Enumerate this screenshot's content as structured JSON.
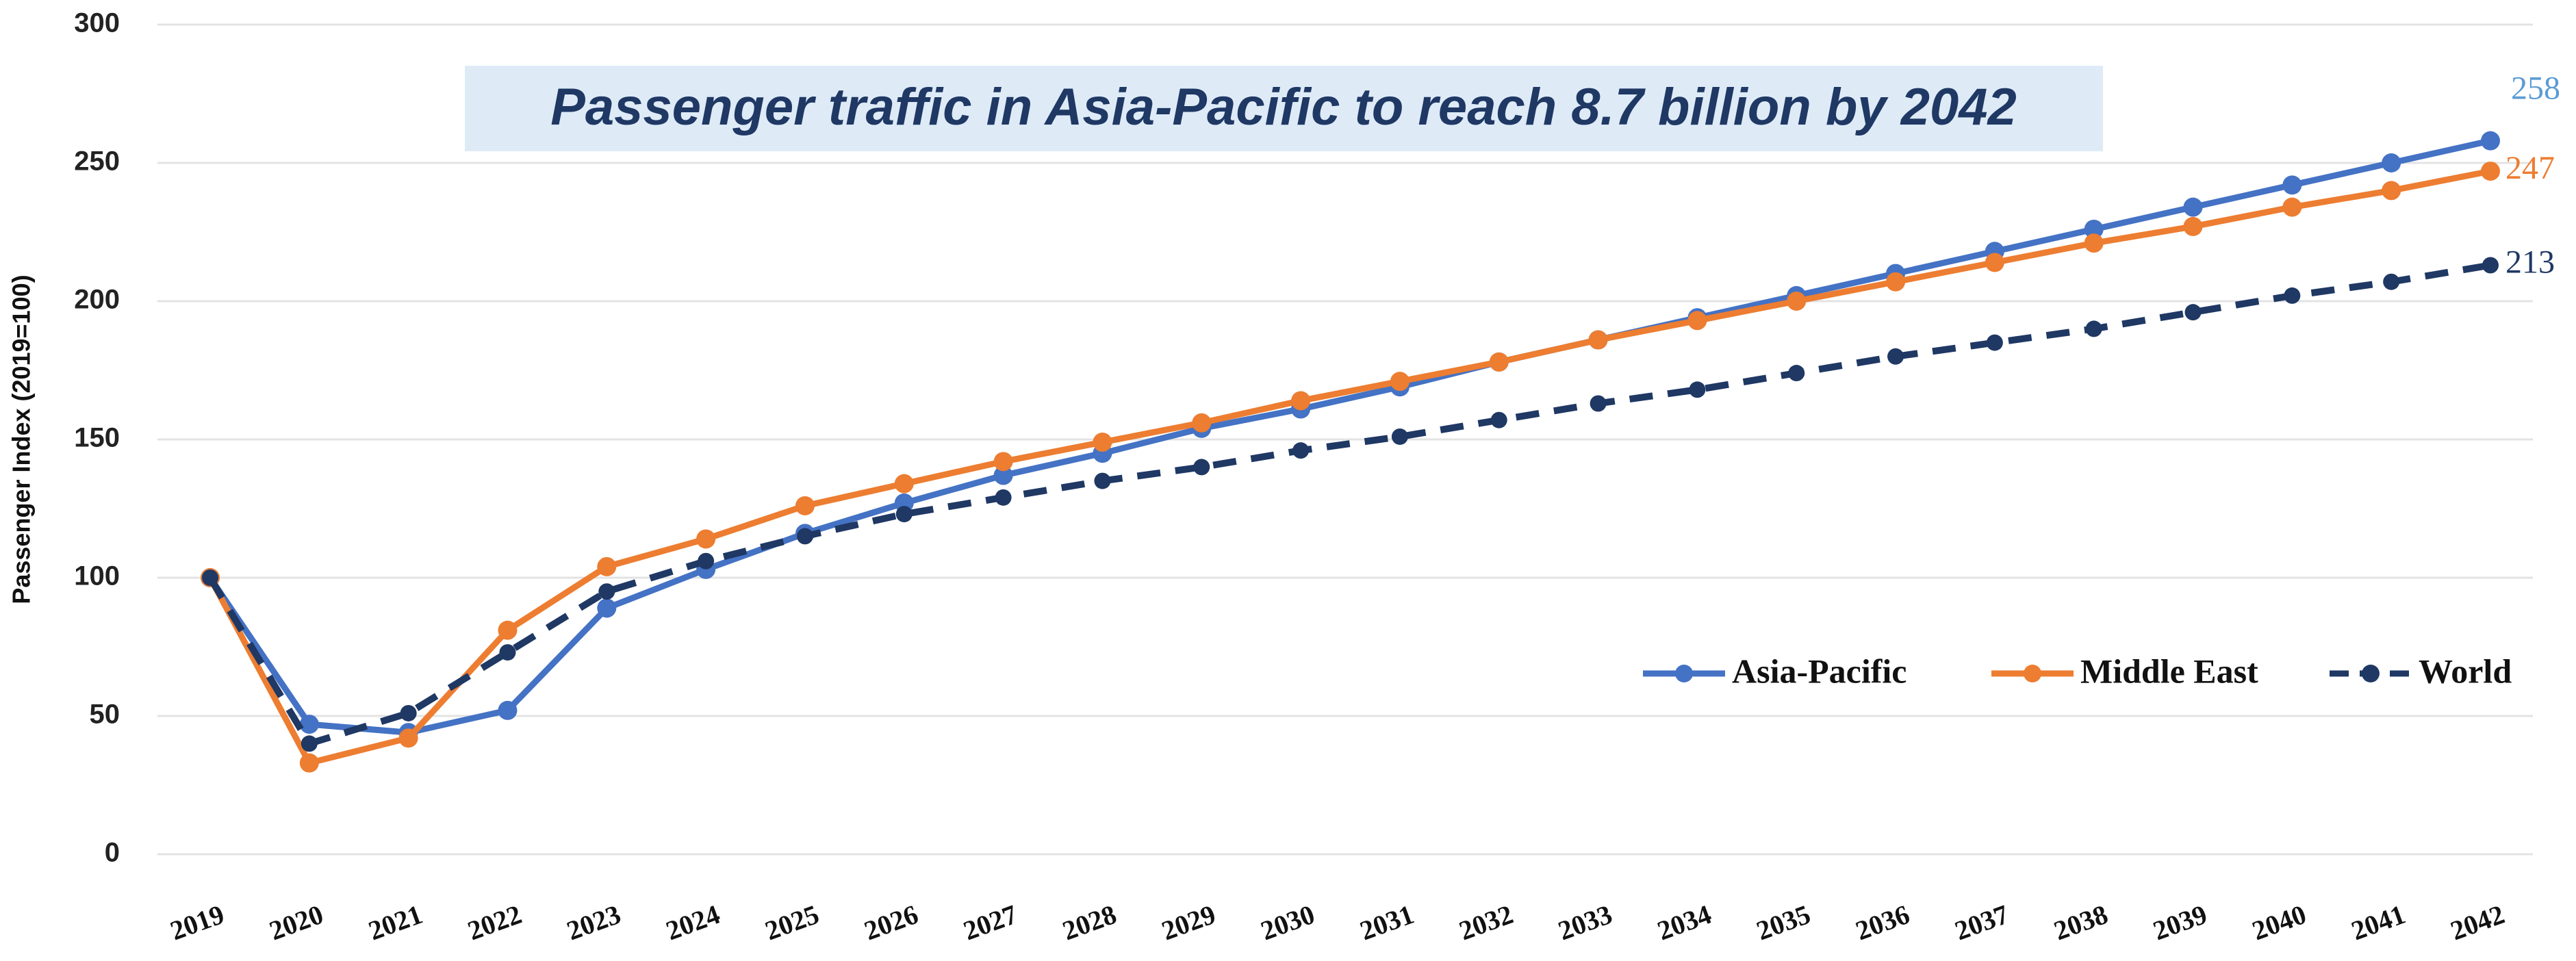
{
  "chart_data": {
    "type": "line",
    "title": "Passenger traffic in Asia-Pacific to reach 8.7 billion by 2042",
    "y_label": "Passenger Index (2019=100)",
    "categories": [
      "2019",
      "2020",
      "2021",
      "2022",
      "2023",
      "2024",
      "2025",
      "2026",
      "2027",
      "2028",
      "2029",
      "2030",
      "2031",
      "2032",
      "2033",
      "2034",
      "2035",
      "2036",
      "2037",
      "2038",
      "2039",
      "2040",
      "2041",
      "2042"
    ],
    "series": [
      {
        "name": "Asia-Pacific",
        "color": "#4472c4",
        "label_color": "#5b9bd5",
        "dashed": false,
        "values": [
          100,
          47,
          44,
          52,
          89,
          103,
          116,
          127,
          137,
          145,
          154,
          161,
          169,
          178,
          186,
          194,
          202,
          210,
          218,
          226,
          234,
          242,
          250,
          258
        ]
      },
      {
        "name": "Middle East",
        "color": "#ed7d31",
        "label_color": "#ed7d31",
        "dashed": false,
        "values": [
          100,
          33,
          42,
          81,
          104,
          114,
          126,
          134,
          142,
          149,
          156,
          164,
          171,
          178,
          186,
          193,
          200,
          207,
          214,
          221,
          227,
          234,
          240,
          247
        ]
      },
      {
        "name": "World",
        "color": "#1f3864",
        "label_color": "#1f3864",
        "dashed": true,
        "values": [
          100,
          40,
          51,
          73,
          95,
          106,
          115,
          123,
          129,
          135,
          140,
          146,
          151,
          157,
          163,
          168,
          174,
          180,
          185,
          190,
          196,
          202,
          207,
          213
        ]
      }
    ],
    "ylim": [
      0,
      300
    ],
    "yticks": [
      0,
      50,
      100,
      150,
      200,
      250,
      300
    ],
    "grid": true,
    "legend": "lower right"
  }
}
